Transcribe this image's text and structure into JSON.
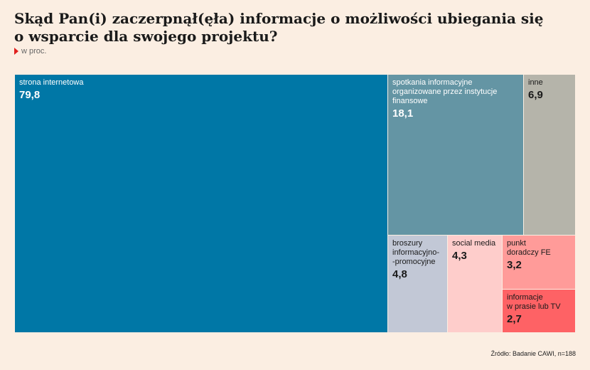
{
  "title": "Skąd Pan(i) zaczerpnął(ęła) informacje o możliwości ubiegania się o wsparcie dla swojego projektu?",
  "subtitle": "w proc.",
  "source": "Źródło: Badanie CAWI, n=188",
  "colors": {
    "background": "#fbeee2",
    "accent": "#e0201e"
  },
  "chart_data": {
    "type": "treemap",
    "items": [
      {
        "label": "strona internetowa",
        "value": 79.8,
        "display": "79,8",
        "color": "#0077a6",
        "text": "dark"
      },
      {
        "label": "spotkania informacyjne\norganizowane przez instytucje\nfinansowe",
        "value": 18.1,
        "display": "18,1",
        "color": "#6495a4",
        "text": "dark"
      },
      {
        "label": "inne",
        "value": 6.9,
        "display": "6,9",
        "color": "#b5b4aa",
        "text": "light"
      },
      {
        "label": "broszury\ninformacyjno-\n-promocyjne",
        "value": 4.8,
        "display": "4,8",
        "color": "#c2c8d6",
        "text": "light"
      },
      {
        "label": "social media",
        "value": 4.3,
        "display": "4,3",
        "color": "#fecdcb",
        "text": "light"
      },
      {
        "label": "punkt\ndoradczy FE",
        "value": 3.2,
        "display": "3,2",
        "color": "#ff9b99",
        "text": "light"
      },
      {
        "label": "informacje\nw prasie lub TV",
        "value": 2.7,
        "display": "2,7",
        "color": "#fe6265",
        "text": "light"
      }
    ]
  }
}
